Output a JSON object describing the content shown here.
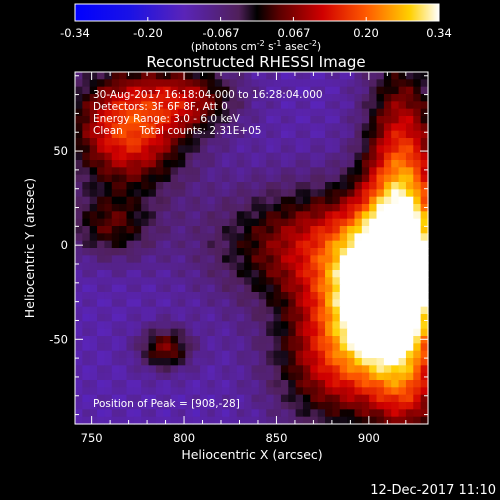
{
  "chart_data": {
    "type": "heatmap",
    "title": "Reconstructed RHESSI Image",
    "xlabel": "Heliocentric X (arcsec)",
    "ylabel": "Heliocentric Y (arcsec)",
    "xlim": [
      741,
      932
    ],
    "ylim": [
      -95,
      92
    ],
    "xticks": [
      750,
      800,
      850,
      900
    ],
    "yticks": [
      50,
      0,
      -50
    ],
    "colorbar": {
      "range": [
        -0.34,
        0.34
      ],
      "ticks": [
        "-0.34",
        "-0.20",
        "-0.067",
        "0.067",
        "0.20",
        "0.34"
      ],
      "unit_main": "(photons cm",
      "unit_sup1": "-2",
      "unit_mid1": " s",
      "unit_sup2": "-1",
      "unit_mid2": " asec",
      "unit_sup3": "-2",
      "unit_end": ")"
    },
    "annotations": {
      "time": "30-Aug-2017 16:18:04.000 to 16:28:04.000",
      "detectors": "Detectors: 3F 6F 8F, Att 0",
      "energy": "Energy Range: 3.0 - 6.0 keV",
      "clean": "Clean     Total counts: 2.31E+05",
      "peak": "Position of Peak = [908,-28]"
    },
    "peak": {
      "x": 908,
      "y": -28,
      "value": 0.34
    },
    "grid": false
  },
  "footer": {
    "timestamp": "12-Dec-2017 11:10"
  }
}
